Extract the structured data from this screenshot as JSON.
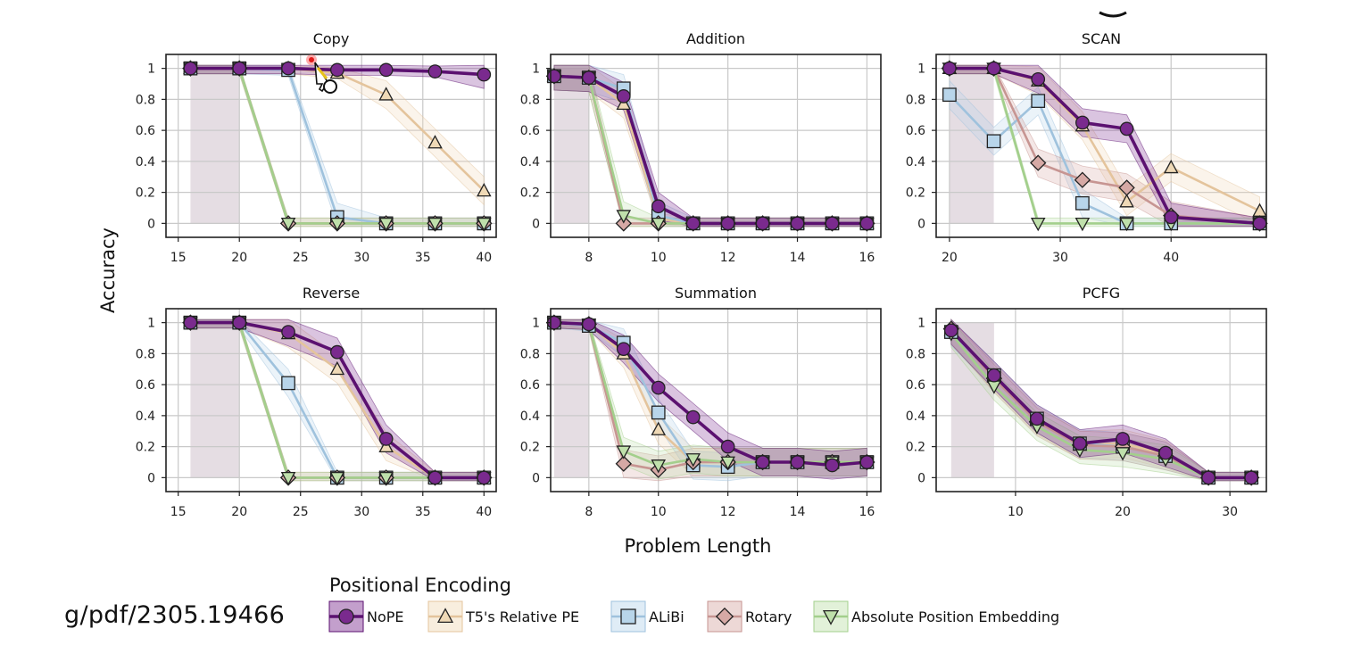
{
  "figure": {
    "shared_ylabel": "Accuracy",
    "shared_xlabel": "Problem Length",
    "legend_title": "Positional Encoding",
    "source_text": "g/pdf/2305.19466"
  },
  "series_styles": [
    {
      "key": "nope",
      "name": "NoPE",
      "color": "#5b1170",
      "fill": "#7a2a8e",
      "marker": "circle"
    },
    {
      "key": "t5",
      "name": "T5's Relative PE",
      "color": "#e4c49c",
      "fill": "#efd9b6",
      "marker": "triangle-up"
    },
    {
      "key": "alibi",
      "name": "ALiBi",
      "color": "#9fc2dd",
      "fill": "#b8d5ea",
      "marker": "square"
    },
    {
      "key": "rotary",
      "name": "Rotary",
      "color": "#c79592",
      "fill": "#d6a9a5",
      "marker": "diamond"
    },
    {
      "key": "abs",
      "name": "Absolute Position Embedding",
      "color": "#a3cf8c",
      "fill": "#bfe0ab",
      "marker": "triangle-down"
    }
  ],
  "chart_data": [
    {
      "type": "line",
      "title": "Copy",
      "xlim": [
        14,
        41
      ],
      "ylim": [
        -0.09,
        1.09
      ],
      "train_region": [
        16,
        20
      ],
      "xticks": [
        15,
        20,
        25,
        30,
        35,
        40
      ],
      "yticks": [
        0,
        0.2,
        0.4,
        0.6,
        0.8,
        1
      ],
      "ytick_labels": [
        "0",
        "0.2",
        "0.4",
        "0.6",
        "0.8",
        "1"
      ],
      "series": [
        {
          "key": "nope",
          "x": [
            16,
            20,
            24,
            28,
            32,
            36,
            40
          ],
          "y": [
            1,
            1,
            1,
            0.99,
            0.99,
            0.98,
            0.96
          ]
        },
        {
          "key": "t5",
          "x": [
            16,
            20,
            24,
            28,
            32,
            36,
            40
          ],
          "y": [
            1,
            1,
            1,
            0.97,
            0.83,
            0.52,
            0.21
          ]
        },
        {
          "key": "alibi",
          "x": [
            16,
            20,
            24,
            28,
            32,
            36,
            40
          ],
          "y": [
            1,
            1,
            0.99,
            0.04,
            0,
            0,
            0
          ]
        },
        {
          "key": "rotary",
          "x": [
            16,
            20,
            24,
            28,
            32,
            36,
            40
          ],
          "y": [
            1,
            1,
            0,
            0,
            0,
            0,
            0
          ]
        },
        {
          "key": "abs",
          "x": [
            16,
            20,
            24,
            28,
            32,
            36,
            40
          ],
          "y": [
            1,
            1,
            0,
            0,
            0,
            0,
            0
          ]
        }
      ]
    },
    {
      "type": "line",
      "title": "Addition",
      "xlim": [
        6.9,
        16.4
      ],
      "ylim": [
        -0.09,
        1.09
      ],
      "train_region": [
        7,
        8
      ],
      "xticks": [
        8,
        10,
        12,
        14,
        16
      ],
      "yticks": [
        0,
        0.2,
        0.4,
        0.6,
        0.8,
        1
      ],
      "ytick_labels": [
        "0",
        "0.2",
        "0.4",
        "0.6",
        "0.8",
        "1"
      ],
      "series": [
        {
          "key": "nope",
          "x": [
            7,
            8,
            9,
            10,
            11,
            12,
            13,
            14,
            15,
            16
          ],
          "y": [
            0.95,
            0.94,
            0.82,
            0.11,
            0,
            0,
            0,
            0,
            0,
            0
          ]
        },
        {
          "key": "t5",
          "x": [
            7,
            8,
            9,
            10,
            11,
            12,
            13,
            14,
            15,
            16
          ],
          "y": [
            0.95,
            0.94,
            0.77,
            0.03,
            0,
            0,
            0,
            0,
            0,
            0
          ]
        },
        {
          "key": "alibi",
          "x": [
            7,
            8,
            9,
            10,
            11,
            12,
            13,
            14,
            15,
            16
          ],
          "y": [
            0.95,
            0.94,
            0.87,
            0.05,
            0,
            0,
            0,
            0,
            0,
            0
          ]
        },
        {
          "key": "rotary",
          "x": [
            7,
            8,
            9,
            10,
            11,
            12,
            13,
            14,
            15,
            16
          ],
          "y": [
            0.95,
            0.94,
            0,
            0,
            0,
            0,
            0,
            0,
            0,
            0
          ]
        },
        {
          "key": "abs",
          "x": [
            7,
            8,
            9,
            10,
            11,
            12,
            13,
            14,
            15,
            16
          ],
          "y": [
            0.95,
            0.94,
            0.05,
            0,
            0,
            0,
            0,
            0,
            0,
            0
          ]
        }
      ]
    },
    {
      "type": "line",
      "title": "SCAN",
      "xlim": [
        18.8,
        48.6
      ],
      "ylim": [
        -0.09,
        1.09
      ],
      "train_region": [
        20,
        24
      ],
      "xticks": [
        20,
        30,
        40
      ],
      "yticks": [
        0,
        0.2,
        0.4,
        0.6,
        0.8,
        1
      ],
      "ytick_labels": [
        "0",
        "0.2",
        "0.4",
        "0.6",
        "0.8",
        "1"
      ],
      "series": [
        {
          "key": "nope",
          "x": [
            20,
            24,
            28,
            32,
            36,
            40,
            48
          ],
          "y": [
            1,
            1,
            0.93,
            0.65,
            0.61,
            0.04,
            0
          ]
        },
        {
          "key": "t5",
          "x": [
            20,
            24,
            28,
            32,
            36,
            40,
            48
          ],
          "y": [
            1,
            1,
            0.92,
            0.63,
            0.14,
            0.36,
            0.08
          ]
        },
        {
          "key": "alibi",
          "x": [
            20,
            24,
            28,
            32,
            36,
            40,
            48
          ],
          "y": [
            0.83,
            0.53,
            0.79,
            0.13,
            0,
            0,
            0
          ]
        },
        {
          "key": "rotary",
          "x": [
            20,
            24,
            28,
            32,
            36,
            40,
            48
          ],
          "y": [
            1,
            1,
            0.39,
            0.28,
            0.23,
            0.05,
            0
          ]
        },
        {
          "key": "abs",
          "x": [
            20,
            24,
            28,
            32,
            36,
            40,
            48
          ],
          "y": [
            1,
            1,
            0,
            0,
            0,
            0,
            0
          ]
        }
      ]
    },
    {
      "type": "line",
      "title": "Reverse",
      "xlim": [
        14,
        41
      ],
      "ylim": [
        -0.09,
        1.09
      ],
      "train_region": [
        16,
        20
      ],
      "xticks": [
        15,
        20,
        25,
        30,
        35,
        40
      ],
      "yticks": [
        0,
        0.2,
        0.4,
        0.6,
        0.8,
        1
      ],
      "ytick_labels": [
        "0",
        "0.2",
        "0.4",
        "0.6",
        "0.8",
        "1"
      ],
      "series": [
        {
          "key": "nope",
          "x": [
            16,
            20,
            24,
            28,
            32,
            36,
            40
          ],
          "y": [
            1,
            1,
            0.94,
            0.81,
            0.25,
            0,
            0
          ]
        },
        {
          "key": "t5",
          "x": [
            16,
            20,
            24,
            28,
            32,
            36,
            40
          ],
          "y": [
            1,
            1,
            0.93,
            0.7,
            0.2,
            0,
            0
          ]
        },
        {
          "key": "alibi",
          "x": [
            16,
            20,
            24,
            28,
            32,
            36,
            40
          ],
          "y": [
            1,
            1,
            0.61,
            0,
            0,
            0,
            0
          ]
        },
        {
          "key": "rotary",
          "x": [
            16,
            20,
            24,
            28,
            32,
            36,
            40
          ],
          "y": [
            1,
            1,
            0,
            0,
            0,
            0,
            0
          ]
        },
        {
          "key": "abs",
          "x": [
            16,
            20,
            24,
            28,
            32,
            36,
            40
          ],
          "y": [
            1,
            1,
            0,
            0,
            0,
            0,
            0
          ]
        }
      ]
    },
    {
      "type": "line",
      "title": "Summation",
      "xlim": [
        6.9,
        16.4
      ],
      "ylim": [
        -0.09,
        1.09
      ],
      "train_region": [
        7,
        8
      ],
      "xticks": [
        8,
        10,
        12,
        14,
        16
      ],
      "yticks": [
        0,
        0.2,
        0.4,
        0.6,
        0.8,
        1
      ],
      "ytick_labels": [
        "0",
        "0.2",
        "0.4",
        "0.6",
        "0.8",
        "1"
      ],
      "series": [
        {
          "key": "nope",
          "x": [
            7,
            8,
            9,
            10,
            11,
            12,
            13,
            14,
            15,
            16
          ],
          "y": [
            1,
            0.99,
            0.83,
            0.58,
            0.39,
            0.2,
            0.1,
            0.1,
            0.08,
            0.1
          ]
        },
        {
          "key": "t5",
          "x": [
            7,
            8,
            9,
            10,
            11,
            12,
            13,
            14,
            15,
            16
          ],
          "y": [
            1,
            0.99,
            0.8,
            0.31,
            0.1,
            0.1,
            0.1,
            0.1,
            0.1,
            0.1
          ]
        },
        {
          "key": "alibi",
          "x": [
            7,
            8,
            9,
            10,
            11,
            12,
            13,
            14,
            15,
            16
          ],
          "y": [
            1,
            0.98,
            0.87,
            0.42,
            0.08,
            0.07,
            0.1,
            0.1,
            0.1,
            0.1
          ]
        },
        {
          "key": "rotary",
          "x": [
            7,
            8,
            9,
            10,
            11,
            12,
            13,
            14,
            15,
            16
          ],
          "y": [
            1,
            0.99,
            0.09,
            0.05,
            0.1,
            0.1,
            0.1,
            0.1,
            0.1,
            0.1
          ]
        },
        {
          "key": "abs",
          "x": [
            7,
            8,
            9,
            10,
            11,
            12,
            13,
            14,
            15,
            16
          ],
          "y": [
            1,
            0.99,
            0.17,
            0.08,
            0.12,
            0.1,
            0.1,
            0.1,
            0.1,
            0.1
          ]
        }
      ]
    },
    {
      "type": "line",
      "title": "PCFG",
      "xlim": [
        2.6,
        33.4
      ],
      "ylim": [
        -0.09,
        1.09
      ],
      "train_region": [
        4,
        8
      ],
      "xticks": [
        10,
        20,
        30
      ],
      "yticks": [
        0,
        0.2,
        0.4,
        0.6,
        0.8,
        1
      ],
      "ytick_labels": [
        "0",
        "0.2",
        "0.4",
        "0.6",
        "0.8",
        "1"
      ],
      "series": [
        {
          "key": "nope",
          "x": [
            4,
            8,
            12,
            16,
            20,
            24,
            28,
            32
          ],
          "y": [
            0.95,
            0.66,
            0.38,
            0.22,
            0.25,
            0.16,
            0,
            0
          ]
        },
        {
          "key": "t5",
          "x": [
            4,
            8,
            12,
            16,
            20,
            24,
            28,
            32
          ],
          "y": [
            0.95,
            0.65,
            0.37,
            0.21,
            0.22,
            0.15,
            0,
            0
          ]
        },
        {
          "key": "alibi",
          "x": [
            4,
            8,
            12,
            16,
            20,
            24,
            28,
            32
          ],
          "y": [
            0.94,
            0.66,
            0.38,
            0.22,
            0.2,
            0.14,
            0,
            0
          ]
        },
        {
          "key": "rotary",
          "x": [
            4,
            8,
            12,
            16,
            20,
            24,
            28,
            32
          ],
          "y": [
            0.96,
            0.64,
            0.36,
            0.21,
            0.2,
            0.14,
            0,
            0
          ]
        },
        {
          "key": "abs",
          "x": [
            4,
            8,
            12,
            16,
            20,
            24,
            28,
            32
          ],
          "y": [
            0.93,
            0.59,
            0.33,
            0.18,
            0.16,
            0.12,
            0,
            0
          ]
        }
      ]
    }
  ]
}
